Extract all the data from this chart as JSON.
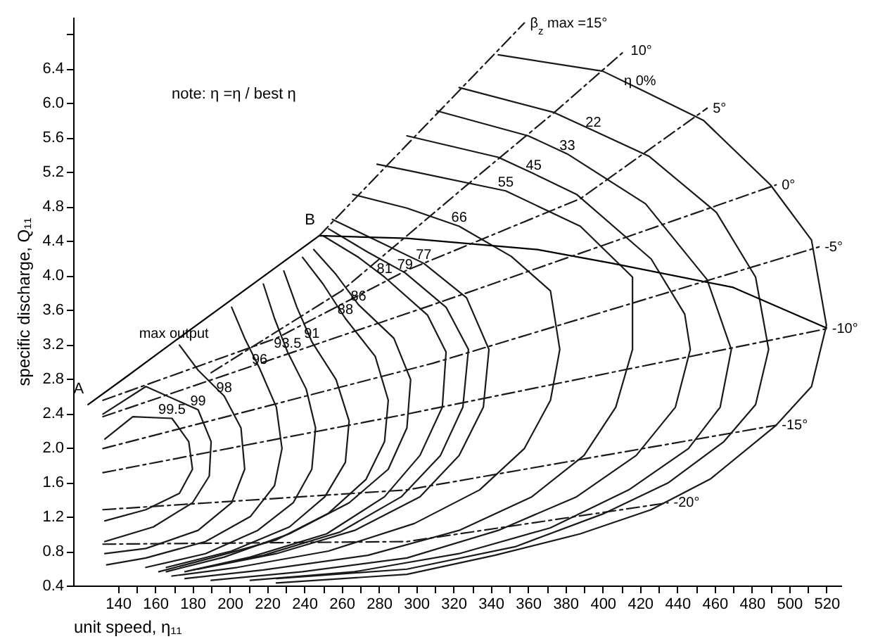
{
  "chart_data": {
    "type": "line",
    "xlabel": "unit speed, η₁₁",
    "ylabel": "specific discharge, Q₁₁",
    "xlim": [
      116,
      528
    ],
    "ylim": [
      0.4,
      7.0
    ],
    "xticks": [
      140,
      {
        "value": 150,
        "label": null
      },
      160,
      {
        "value": 170,
        "label": null
      },
      180,
      {
        "value": 190,
        "label": null
      },
      200,
      {
        "value": 210,
        "label": null
      },
      220,
      {
        "value": 230,
        "label": null
      },
      240,
      {
        "value": 250,
        "label": null
      },
      260,
      {
        "value": 270,
        "label": null
      },
      280,
      {
        "value": 290,
        "label": null
      },
      300,
      {
        "value": 310,
        "label": null
      },
      320,
      {
        "value": 330,
        "label": null
      },
      340,
      {
        "value": 350,
        "label": null
      },
      360,
      {
        "value": 370,
        "label": null
      },
      380,
      {
        "value": 390,
        "label": null
      },
      400,
      {
        "value": 410,
        "label": null
      },
      420,
      {
        "value": 430,
        "label": null
      },
      440,
      {
        "value": 450,
        "label": null
      },
      460,
      {
        "value": 470,
        "label": null
      },
      480,
      {
        "value": 490,
        "label": null
      },
      500,
      {
        "value": 510,
        "label": null
      },
      520
    ],
    "yticks": [
      0.4,
      0.8,
      1.2,
      1.6,
      {
        "value": 2,
        "label": "2.0"
      },
      2.4,
      2.8,
      3.2,
      3.6,
      {
        "value": 4,
        "label": "4.0"
      },
      4.4,
      4.8,
      5.2,
      5.6,
      {
        "value": 6,
        "label": "6.0"
      },
      6.4,
      {
        "value": 6.8,
        "label": null
      }
    ],
    "series": [
      {
        "name": "η 0%",
        "color": "#1a1a1a",
        "x": [
          344,
          400,
          420,
          454,
          490,
          512,
          520,
          512,
          493,
          458,
          426,
          388,
          342,
          295,
          225
        ],
        "values": [
          6.56,
          6.37,
          6.16,
          5.8,
          5.05,
          4.41,
          3.42,
          2.71,
          2.26,
          1.64,
          1.28,
          1.0,
          0.75,
          0.53,
          0.43
        ]
      },
      {
        "name": "22",
        "color": "#1a1a1a",
        "x": [
          323,
          374,
          395,
          425,
          461,
          482,
          489,
          482,
          465,
          435,
          400,
          353,
          295,
          225
        ],
        "values": [
          6.18,
          5.89,
          5.68,
          5.38,
          4.73,
          3.98,
          3.14,
          2.5,
          2.07,
          1.59,
          1.23,
          0.85,
          0.59,
          0.48
        ]
      },
      {
        "name": "33",
        "color": "#1a1a1a",
        "x": [
          311,
          360,
          381,
          423,
          456,
          469,
          463,
          446,
          414,
          372,
          323,
          267,
          211
        ],
        "values": [
          5.91,
          5.62,
          5.41,
          4.83,
          3.95,
          3.14,
          2.47,
          1.99,
          1.51,
          1.07,
          0.77,
          0.56,
          0.46
        ]
      },
      {
        "name": "45",
        "color": "#1a1a1a",
        "x": [
          295,
          344,
          363,
          386,
          426,
          444,
          447,
          439,
          418,
          386,
          344,
          295,
          239,
          190
        ],
        "values": [
          5.62,
          5.37,
          5.18,
          4.94,
          4.19,
          3.55,
          3.14,
          2.47,
          1.91,
          1.43,
          1.04,
          0.72,
          0.56,
          0.46
        ]
      },
      {
        "name": "55",
        "color": "#1a1a1a",
        "x": [
          279,
          295,
          348,
          388,
          416,
          416,
          407,
          390,
          362,
          323,
          274,
          218,
          176
        ],
        "values": [
          5.29,
          5.22,
          4.98,
          4.57,
          3.98,
          3.14,
          2.47,
          1.91,
          1.43,
          1.04,
          0.75,
          0.58,
          0.48
        ]
      },
      {
        "name": "66",
        "color": "#1a1a1a",
        "x": [
          266,
          295,
          323,
          351,
          372,
          377,
          372,
          358,
          334,
          299,
          253,
          204,
          169
        ],
        "values": [
          4.94,
          4.78,
          4.57,
          4.22,
          3.82,
          3.14,
          2.55,
          1.99,
          1.51,
          1.12,
          0.8,
          0.61,
          0.51
        ]
      },
      {
        "name": "77",
        "color": "#1a1a1a",
        "x": [
          255,
          281,
          304,
          327,
          339,
          336,
          323,
          302,
          267,
          225,
          183
        ],
        "values": [
          4.65,
          4.38,
          4.14,
          3.74,
          3.14,
          2.47,
          1.91,
          1.43,
          1.04,
          0.77,
          0.59
        ]
      },
      {
        "name": "79",
        "color": "#1a1a1a",
        "x": [
          253,
          274,
          294,
          316,
          328,
          325,
          313,
          292,
          259,
          218,
          180
        ],
        "values": [
          4.54,
          4.27,
          4.03,
          3.63,
          3.14,
          2.47,
          1.91,
          1.43,
          1.02,
          0.75,
          0.58
        ]
      },
      {
        "name": "81",
        "color": "#1a1a1a",
        "x": [
          250,
          269,
          283,
          306,
          316,
          314,
          302,
          283,
          252,
          211,
          176
        ],
        "values": [
          4.46,
          4.21,
          3.98,
          3.54,
          3.11,
          2.47,
          1.91,
          1.43,
          1.0,
          0.73,
          0.56
        ]
      },
      {
        "name": "86",
        "color": "#1a1a1a",
        "x": [
          245,
          257,
          269,
          288,
          297,
          295,
          285,
          264,
          232,
          197,
          166
        ],
        "values": [
          4.3,
          4.01,
          3.66,
          3.27,
          2.79,
          2.23,
          1.75,
          1.36,
          1.0,
          0.73,
          0.56
        ]
      },
      {
        "name": "88",
        "color": "#1a1a1a",
        "x": [
          239,
          250,
          262,
          278,
          285,
          283,
          273,
          253,
          225,
          190,
          162
        ],
        "values": [
          4.21,
          3.9,
          3.5,
          3.06,
          2.55,
          2.07,
          1.63,
          1.24,
          0.93,
          0.72,
          0.56
        ]
      },
      {
        "name": "91",
        "color": "#1a1a1a",
        "x": [
          229,
          236,
          244,
          257,
          264,
          262,
          251,
          232,
          201,
          166
        ],
        "values": [
          4.05,
          3.63,
          3.23,
          2.79,
          2.31,
          1.83,
          1.43,
          1.08,
          0.8,
          0.61
        ]
      },
      {
        "name": "93.5",
        "color": "#1a1a1a",
        "x": [
          218,
          224,
          231,
          241,
          246,
          244,
          234,
          215,
          187,
          155
        ],
        "values": [
          3.9,
          3.5,
          3.11,
          2.68,
          2.23,
          1.75,
          1.36,
          1.04,
          0.77,
          0.61
        ]
      },
      {
        "name": "96",
        "color": "#1a1a1a",
        "x": [
          201,
          208,
          216,
          225,
          228,
          224,
          211,
          187,
          155,
          134
        ],
        "values": [
          3.63,
          3.27,
          2.92,
          2.47,
          1.99,
          1.56,
          1.2,
          0.91,
          0.72,
          0.64
        ]
      },
      {
        "name": "98",
        "color": "#1a1a1a",
        "x": [
          173,
          183,
          197,
          206,
          208,
          201,
          183,
          155,
          133
        ],
        "values": [
          3.19,
          2.9,
          2.6,
          2.23,
          1.75,
          1.36,
          1.04,
          0.83,
          0.77
        ]
      },
      {
        "name": "99",
        "color": "#1a1a1a",
        "x": [
          132,
          155,
          183,
          190,
          189,
          180,
          159,
          133
        ],
        "values": [
          2.39,
          2.71,
          2.44,
          2.07,
          1.67,
          1.36,
          1.08,
          0.91
        ]
      },
      {
        "name": "99.5",
        "color": "#1a1a1a",
        "x": [
          133,
          148,
          169,
          178,
          180,
          173,
          155,
          133
        ],
        "values": [
          2.1,
          2.36,
          2.34,
          2.07,
          1.75,
          1.47,
          1.28,
          1.15
        ]
      },
      {
        "name": "max output",
        "color": "#000000",
        "x": [
          124,
          145,
          170,
          248,
          295,
          365,
          405,
          470,
          520
        ],
        "values": [
          2.5,
          2.83,
          3.23,
          4.46,
          4.43,
          4.3,
          4.14,
          3.86,
          3.39
        ]
      },
      {
        "name": "β$_{z}$ max =15°",
        "color": "#1a1a1a",
        "line_style": "dashed",
        "x": [
          248,
          358
        ],
        "values": [
          4.46,
          6.93
        ]
      },
      {
        "name": "10°",
        "color": "#1a1a1a",
        "line_style": "dashed",
        "x": [
          190,
          260,
          330,
          374,
          412
        ],
        "values": [
          2.87,
          3.82,
          5.1,
          5.89,
          6.61
        ]
      },
      {
        "name": "5°",
        "color": "#1a1a1a",
        "line_style": "dashed",
        "x": [
          132,
          225,
          295,
          388,
          456
        ],
        "values": [
          2.55,
          3.27,
          4.06,
          4.89,
          5.94
        ]
      },
      {
        "name": "0°",
        "color": "#1a1a1a",
        "line_style": "dashed",
        "x": [
          132,
          309,
          493
        ],
        "values": [
          2.36,
          3.66,
          5.05
        ]
      },
      {
        "name": "-5°",
        "color": "#1a1a1a",
        "line_style": "dashed",
        "x": [
          132,
          309,
          516
        ],
        "values": [
          1.99,
          2.98,
          4.33
        ]
      },
      {
        "name": "-10°",
        "color": "#1a1a1a",
        "line_style": "dashed",
        "x": [
          132,
          295,
          520
        ],
        "values": [
          1.71,
          2.39,
          3.38
        ]
      },
      {
        "name": "-15°",
        "color": "#1a1a1a",
        "line_style": "dashed",
        "x": [
          132,
          295,
          493
        ],
        "values": [
          1.28,
          1.51,
          2.26
        ]
      },
      {
        "name": "-20°",
        "color": "#1a1a1a",
        "line_style": "dashed",
        "x": [
          132,
          295,
          435
        ],
        "values": [
          0.88,
          0.91,
          1.36
        ]
      }
    ],
    "annotations": [
      "note: η =η / best η",
      {
        "text": "A",
        "x": 124,
        "y": 2.5
      },
      {
        "text": "B",
        "x": 248,
        "y": 4.46
      }
    ]
  }
}
